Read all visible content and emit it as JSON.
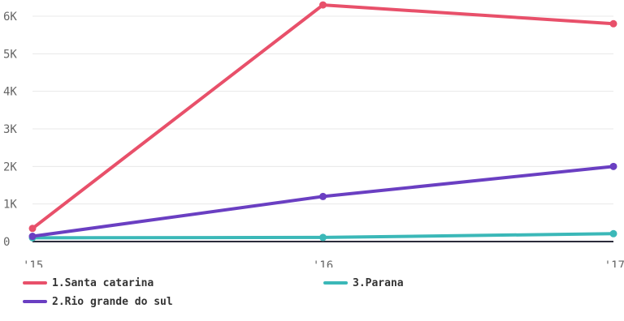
{
  "chart_data": {
    "type": "line",
    "categories": [
      "'15",
      "'16",
      "'17"
    ],
    "series": [
      {
        "name": "1.Santa catarina",
        "values": [
          350,
          6300,
          5800
        ],
        "color": "#e8506a"
      },
      {
        "name": "2.Rio grande do sul",
        "values": [
          140,
          1200,
          2000
        ],
        "color": "#6a3fc2"
      },
      {
        "name": "3.Parana",
        "values": [
          100,
          110,
          210
        ],
        "color": "#3bb8b8"
      }
    ],
    "y_ticks": [
      "0",
      "1K",
      "2K",
      "3K",
      "4K",
      "5K",
      "6K"
    ],
    "ylim": [
      0,
      6000
    ],
    "grid": true,
    "legend_position": "bottom",
    "baseline_color": "#2b2b3a",
    "grid_color": "#e8e8e8"
  }
}
